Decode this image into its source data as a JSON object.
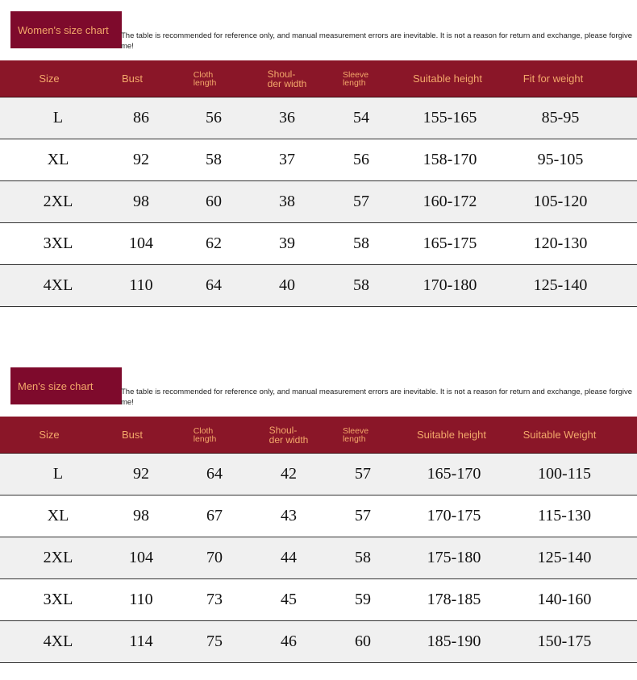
{
  "note": "The table is recommended for reference only, and manual measurement errors are inevitable. It is not a reason for return and exchange, please forgive me!",
  "women": {
    "title": "Women's size chart",
    "headers": [
      "Size",
      "Bust",
      "Cloth\nlength",
      "Shoul-\nder width",
      "Sleeve\nlength",
      "Suitable height",
      "Fit for weight"
    ],
    "rows": [
      [
        "L",
        "86",
        "56",
        "36",
        "54",
        "155-165",
        "85-95"
      ],
      [
        "XL",
        "92",
        "58",
        "37",
        "56",
        "158-170",
        "95-105"
      ],
      [
        "2XL",
        "98",
        "60",
        "38",
        "57",
        "160-172",
        "105-120"
      ],
      [
        "3XL",
        "104",
        "62",
        "39",
        "58",
        "165-175",
        "120-130"
      ],
      [
        "4XL",
        "110",
        "64",
        "40",
        "58",
        "170-180",
        "125-140"
      ]
    ]
  },
  "men": {
    "title": "Men's size chart",
    "headers": [
      "Size",
      "Bust",
      "Cloth\nlength",
      "Shoul-\nder width",
      "Sleeve\nlength",
      "Suitable height",
      "Suitable Weight"
    ],
    "rows": [
      [
        "L",
        "92",
        "64",
        "42",
        "57",
        "165-170",
        "100-115"
      ],
      [
        "XL",
        "98",
        "67",
        "43",
        "57",
        "170-175",
        "115-130"
      ],
      [
        "2XL",
        "104",
        "70",
        "44",
        "58",
        "175-180",
        "125-140"
      ],
      [
        "3XL",
        "110",
        "73",
        "45",
        "59",
        "178-185",
        "140-160"
      ],
      [
        "4XL",
        "114",
        "75",
        "46",
        "60",
        "185-190",
        "150-175"
      ]
    ]
  },
  "colors": {
    "header": "#8a1628",
    "title_box": "#7e0a2c",
    "header_text": "#f3a86a"
  }
}
